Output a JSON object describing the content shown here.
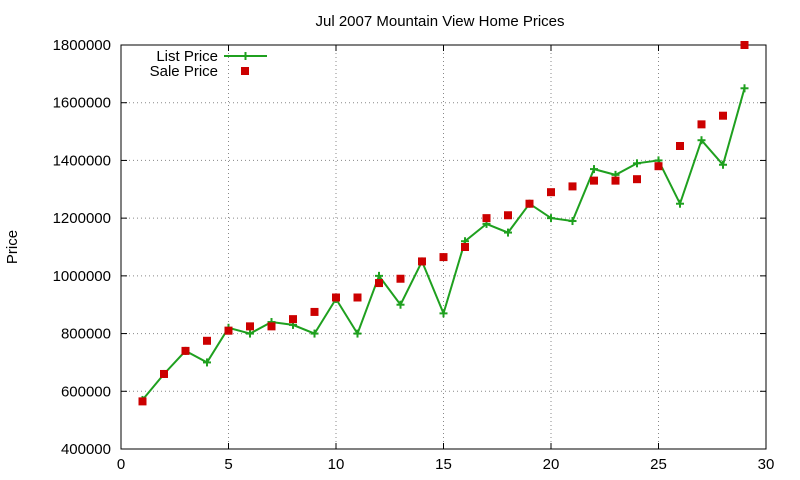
{
  "chart_data": {
    "type": "line",
    "title": "Jul 2007 Mountain View Home Prices",
    "xlabel": "",
    "ylabel": "Price",
    "xlim": [
      0,
      30
    ],
    "ylim": [
      400000,
      1800000
    ],
    "x_ticks": [
      0,
      5,
      10,
      15,
      20,
      25,
      30
    ],
    "y_ticks": [
      400000,
      600000,
      800000,
      1000000,
      1200000,
      1400000,
      1600000,
      1800000
    ],
    "grid": true,
    "legend_position": "top-left",
    "series": [
      {
        "name": "List Price",
        "style": "line-plus",
        "color": "#1fa01f",
        "x": [
          1,
          2,
          3,
          4,
          5,
          6,
          7,
          8,
          9,
          10,
          11,
          12,
          13,
          14,
          15,
          16,
          17,
          18,
          19,
          20,
          21,
          22,
          23,
          24,
          25,
          26,
          27,
          28,
          29
        ],
        "values": [
          570000,
          660000,
          740000,
          700000,
          820000,
          800000,
          840000,
          830000,
          800000,
          920000,
          800000,
          1000000,
          900000,
          1050000,
          870000,
          1120000,
          1180000,
          1150000,
          1250000,
          1200000,
          1190000,
          1370000,
          1350000,
          1390000,
          1400000,
          1250000,
          1470000,
          1385000,
          1650000
        ]
      },
      {
        "name": "Sale Price",
        "style": "square",
        "color": "#cc0000",
        "x": [
          1,
          2,
          3,
          4,
          5,
          6,
          7,
          8,
          9,
          10,
          11,
          12,
          13,
          14,
          15,
          16,
          17,
          18,
          19,
          20,
          21,
          22,
          23,
          24,
          25,
          26,
          27,
          28,
          29
        ],
        "values": [
          565000,
          660000,
          740000,
          775000,
          810000,
          825000,
          825000,
          850000,
          875000,
          925000,
          925000,
          975000,
          990000,
          1050000,
          1065000,
          1100000,
          1200000,
          1210000,
          1250000,
          1290000,
          1310000,
          1330000,
          1330000,
          1335000,
          1380000,
          1450000,
          1525000,
          1555000,
          1800000
        ]
      }
    ]
  }
}
